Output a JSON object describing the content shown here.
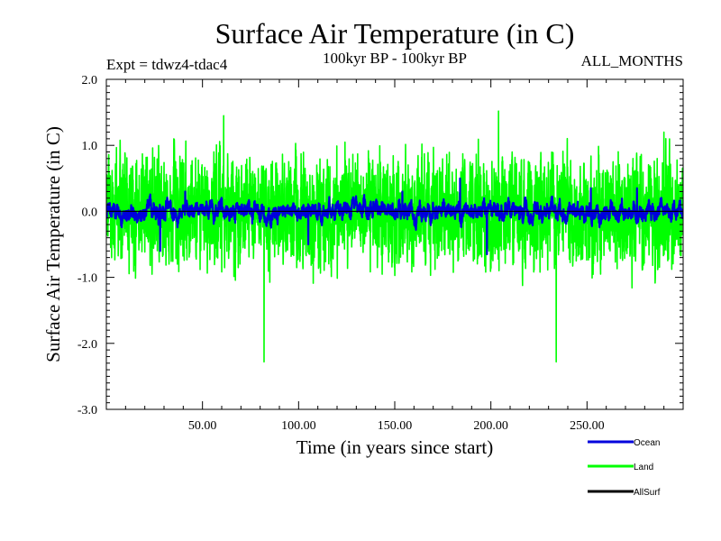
{
  "chart_data": {
    "type": "line",
    "title": "Surface Air Temperature (in C)",
    "subtitle_left": "Expt = tdwz4-tdac4",
    "subtitle_center": "100kyr BP - 100kyr BP",
    "subtitle_right": "ALL_MONTHS",
    "xlabel": "Time (in years since start)",
    "ylabel": "Surface Air Temperature (in C)",
    "xlim": [
      0,
      300
    ],
    "ylim": [
      -3.0,
      2.0
    ],
    "x_ticks": [
      50,
      100,
      150,
      200,
      250
    ],
    "x_tick_labels": [
      "50.00",
      "100.00",
      "150.00",
      "200.00",
      "250.00"
    ],
    "y_ticks": [
      -3.0,
      -2.0,
      -1.0,
      0.0,
      1.0,
      2.0
    ],
    "y_tick_labels": [
      "-3.0",
      "-2.0",
      "-1.0",
      "0.0",
      "1.0",
      "2.0"
    ],
    "zero_line": true,
    "legend_position": "bottom-right",
    "series": [
      {
        "name": "Ocean",
        "color": "#0000dd",
        "min": -0.65,
        "max": 0.5,
        "peaks": [
          {
            "x": 28,
            "y": -0.6
          },
          {
            "x": 41,
            "y": 0.3
          },
          {
            "x": 105,
            "y": -0.5
          },
          {
            "x": 154,
            "y": 0.3
          },
          {
            "x": 184,
            "y": 0.5
          },
          {
            "x": 198,
            "y": -0.65
          },
          {
            "x": 252,
            "y": 0.35
          },
          {
            "x": 276,
            "y": 0.35
          }
        ]
      },
      {
        "name": "Land",
        "color": "#00ff00",
        "min": -2.28,
        "max": 1.52,
        "peaks": [
          {
            "x": 61,
            "y": 1.45
          },
          {
            "x": 82,
            "y": -2.28
          },
          {
            "x": 204,
            "y": 1.52
          },
          {
            "x": 234,
            "y": -2.28
          },
          {
            "x": 290,
            "y": 1.2
          }
        ]
      },
      {
        "name": "AllSurf",
        "color": "#000000",
        "min": 0.0,
        "max": 0.0
      }
    ]
  }
}
